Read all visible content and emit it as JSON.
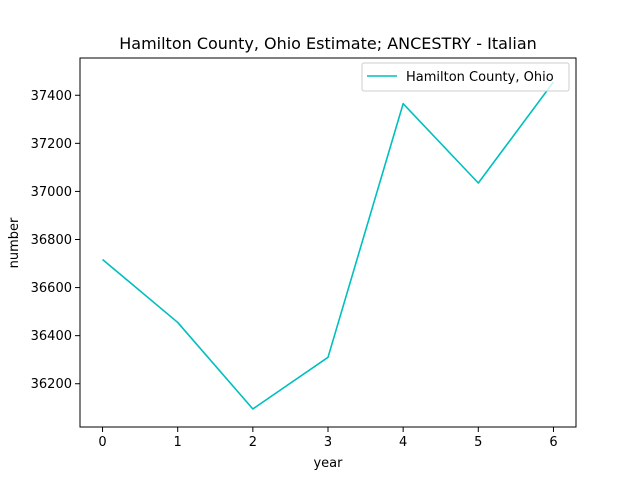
{
  "chart_data": {
    "type": "line",
    "title": "Hamilton County, Ohio Estimate; ANCESTRY - Italian",
    "xlabel": "year",
    "ylabel": "number",
    "x": [
      0,
      1,
      2,
      3,
      4,
      5,
      6
    ],
    "xlim": [
      -0.3,
      6.3
    ],
    "ylim": [
      36020,
      37555
    ],
    "xticks": [
      0,
      1,
      2,
      3,
      4,
      5,
      6
    ],
    "yticks": [
      36200,
      36400,
      36600,
      36800,
      37000,
      37200,
      37400
    ],
    "grid": false,
    "legend_position": "upper right",
    "series": [
      {
        "name": "Hamilton County, Ohio",
        "color": "#00bfbf",
        "values": [
          36717,
          36455,
          36095,
          36310,
          37365,
          37035,
          37455
        ]
      }
    ]
  }
}
